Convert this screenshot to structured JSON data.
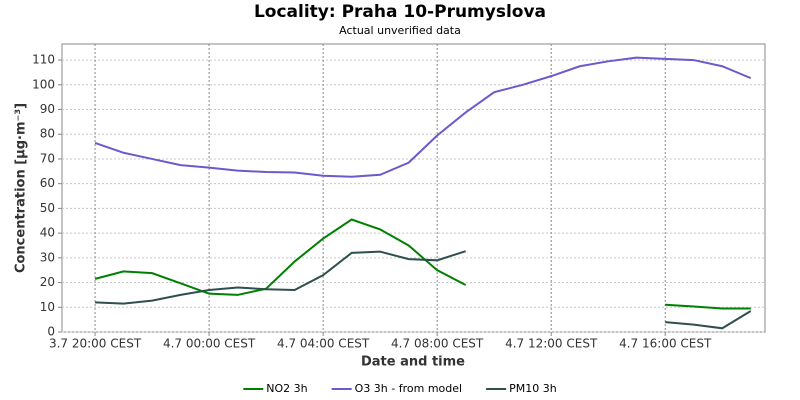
{
  "chart_data": {
    "type": "line",
    "title": "Locality: Praha 10-Prumyslova",
    "subtitle": "Actual unverified data",
    "x_label": "Date and time",
    "y_label": "Concentration [µg·m⁻³]",
    "categories": [
      "3.7 20:00 CEST",
      null,
      null,
      null,
      "4.7 00:00 CEST",
      null,
      null,
      null,
      "4.7 04:00 CEST",
      null,
      null,
      null,
      "4.7 08:00 CEST",
      null,
      null,
      null,
      "4.7 12:00 CEST",
      null,
      null,
      null,
      "4.7 16:00 CEST",
      null,
      null,
      null
    ],
    "series": [
      {
        "name": "NO2 3h",
        "color": "#008000",
        "values": [
          21.5,
          24.5,
          23.8,
          19.7,
          15.5,
          15,
          17.5,
          28.5,
          37.8,
          45.5,
          41.5,
          35,
          25,
          19,
          null,
          null,
          null,
          null,
          null,
          null,
          11,
          10.3,
          9.5,
          9.5
        ]
      },
      {
        "name": "O3 3h - from model",
        "color": "#6a5acd",
        "values": [
          76.5,
          72.5,
          70,
          67.5,
          66.5,
          65.3,
          64.7,
          64.5,
          63.2,
          62.8,
          63.6,
          68.5,
          79.5,
          88.8,
          97,
          100,
          103.5,
          107.5,
          109.5,
          111,
          110.5,
          110,
          107.5,
          102.7
        ]
      },
      {
        "name": "PM10 3h",
        "color": "#2f4f4f",
        "values": [
          12,
          11.5,
          12.7,
          15,
          17,
          18,
          17.3,
          17,
          23,
          32,
          32.5,
          29.5,
          29,
          32.7,
          null,
          null,
          null,
          null,
          null,
          null,
          4,
          3,
          1.5,
          8.5
        ]
      }
    ],
    "ylim": [
      0,
      116.5
    ],
    "yticks": [
      0,
      10,
      20,
      30,
      40,
      50,
      60,
      70,
      80,
      90,
      100,
      110
    ],
    "grid": true,
    "legend": "bottom"
  }
}
